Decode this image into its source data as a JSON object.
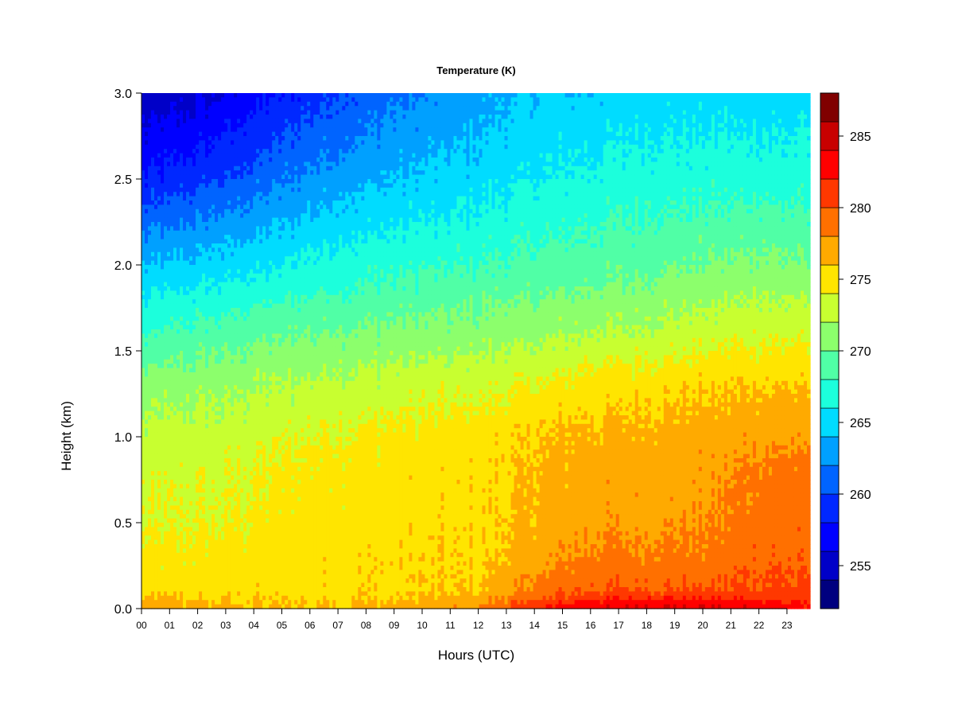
{
  "chart_data": {
    "type": "heatmap",
    "title": "Temperature (K)",
    "xlabel": "Hours (UTC)",
    "ylabel": "Height (km)",
    "x_ticks": [
      "00",
      "01",
      "02",
      "03",
      "04",
      "05",
      "06",
      "07",
      "08",
      "09",
      "10",
      "11",
      "12",
      "13",
      "14",
      "15",
      "16",
      "17",
      "18",
      "19",
      "20",
      "21",
      "22",
      "23"
    ],
    "xlim": [
      0,
      23.9
    ],
    "y_ticks": [
      0.0,
      0.5,
      1.0,
      1.5,
      2.0,
      2.5,
      3.0
    ],
    "y_tick_labels": [
      "0.0",
      "0.5",
      "1.0",
      "1.5",
      "2.0",
      "2.5",
      "3.0"
    ],
    "ylim": [
      0,
      3.0
    ],
    "colorbar": {
      "levels": [
        252,
        254,
        256,
        258,
        260,
        262,
        264,
        266,
        268,
        270,
        272,
        274,
        276,
        278,
        280,
        282,
        284,
        286,
        288
      ],
      "colors": [
        "#00007f",
        "#0000c8",
        "#0000ff",
        "#0028ff",
        "#0064ff",
        "#00a0ff",
        "#00dcff",
        "#1cffdc",
        "#50ffa6",
        "#8cff6c",
        "#c8ff30",
        "#ffe500",
        "#ffaa00",
        "#ff7000",
        "#ff3800",
        "#ff0000",
        "#c80000",
        "#800000"
      ],
      "tick_values": [
        255,
        260,
        265,
        270,
        275,
        280,
        285
      ],
      "tick_labels": [
        "255",
        "260",
        "265",
        "270",
        "275",
        "280",
        "285"
      ]
    },
    "profiles": {
      "hours": [
        0,
        3,
        6,
        9,
        12,
        14,
        16,
        18,
        20,
        22,
        23.9
      ],
      "heights": [
        0.0,
        0.05,
        0.1,
        0.3,
        0.5,
        0.8,
        1.0,
        1.3,
        1.6,
        2.0,
        2.5,
        3.0
      ],
      "values": [
        [
          277.0,
          276.5,
          275.0,
          274.5,
          273.8,
          273.2,
          272.5,
          271.0,
          268.0,
          264.0,
          258.0,
          254.5
        ],
        [
          276.5,
          276.0,
          275.2,
          274.8,
          274.0,
          273.6,
          273.0,
          271.5,
          269.0,
          265.0,
          260.0,
          256.0
        ],
        [
          276.2,
          275.8,
          275.4,
          275.2,
          275.0,
          274.6,
          274.0,
          272.5,
          270.0,
          266.5,
          262.5,
          259.0
        ],
        [
          276.5,
          276.0,
          275.6,
          275.5,
          275.2,
          275.0,
          274.6,
          273.0,
          270.5,
          267.5,
          264.0,
          261.5
        ],
        [
          278.0,
          277.0,
          276.0,
          275.6,
          275.4,
          275.2,
          275.0,
          273.5,
          271.0,
          268.0,
          265.0,
          263.0
        ],
        [
          282.0,
          280.0,
          278.5,
          277.0,
          276.5,
          276.2,
          276.0,
          274.0,
          271.5,
          268.5,
          266.0,
          264.0
        ],
        [
          284.0,
          282.0,
          280.0,
          278.5,
          277.5,
          277.0,
          276.5,
          275.0,
          272.0,
          269.0,
          266.5,
          264.5
        ],
        [
          284.5,
          282.5,
          280.0,
          278.5,
          277.5,
          277.0,
          276.8,
          275.3,
          272.5,
          269.5,
          267.0,
          265.0
        ],
        [
          284.5,
          282.5,
          280.0,
          278.6,
          277.8,
          277.2,
          277.0,
          275.8,
          273.0,
          270.0,
          267.0,
          265.0
        ],
        [
          283.5,
          282.0,
          280.5,
          279.5,
          279.0,
          278.5,
          277.5,
          276.0,
          273.5,
          270.5,
          267.2,
          265.0
        ],
        [
          282.5,
          281.5,
          280.5,
          279.6,
          279.2,
          278.8,
          277.5,
          276.0,
          273.5,
          270.0,
          267.0,
          264.8
        ]
      ]
    }
  }
}
